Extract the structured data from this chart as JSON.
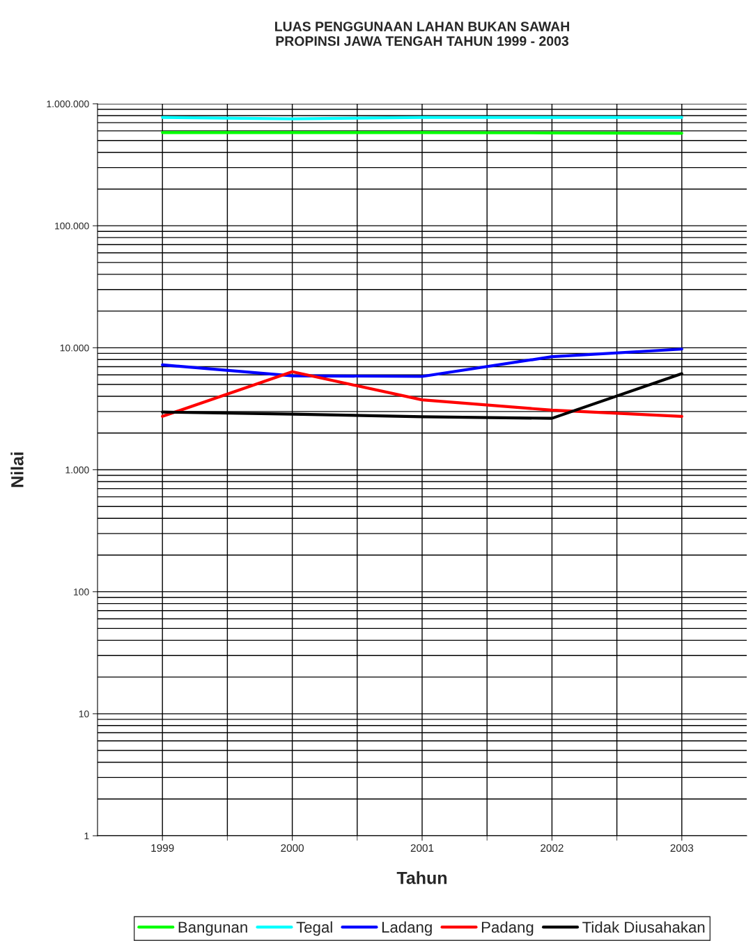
{
  "chart_data": {
    "type": "line",
    "title": "LUAS PENGGUNAAN LAHAN BUKAN SAWAH\nPROPINSI JAWA TENGAH TAHUN 1999 - 2003",
    "xlabel": "Tahun",
    "ylabel": "Nilai",
    "categories": [
      "1999",
      "2000",
      "2001",
      "2002",
      "2003"
    ],
    "series": [
      {
        "name": "Bangunan",
        "color": "#00ff00",
        "values": [
          581000,
          581000,
          581000,
          577000,
          573000
        ]
      },
      {
        "name": "Tegal",
        "color": "#00ffff",
        "values": [
          773000,
          752000,
          773000,
          773000,
          773000
        ]
      },
      {
        "name": "Ladang",
        "color": "#0000ff",
        "values": [
          7240,
          5890,
          5820,
          8450,
          9750
        ]
      },
      {
        "name": "Padang",
        "color": "#ff0000",
        "values": [
          2740,
          6360,
          3740,
          3080,
          2740
        ]
      },
      {
        "name": "Tidak Diusahakan",
        "color": "#000000",
        "values": [
          2970,
          2860,
          2720,
          2640,
          6130
        ]
      }
    ],
    "log": "y",
    "ylim": [
      1,
      1000000
    ],
    "yticks": [
      1,
      10,
      100,
      {
        "value": 1000,
        "label": "1.000"
      },
      {
        "value": 10000,
        "label": "10.000"
      },
      {
        "value": 100000,
        "label": "100.000"
      },
      {
        "value": 1000000,
        "label": "1.000.000"
      }
    ],
    "grid": true,
    "legend": "bottom",
    "line_style": "solid",
    "marker": "none"
  }
}
